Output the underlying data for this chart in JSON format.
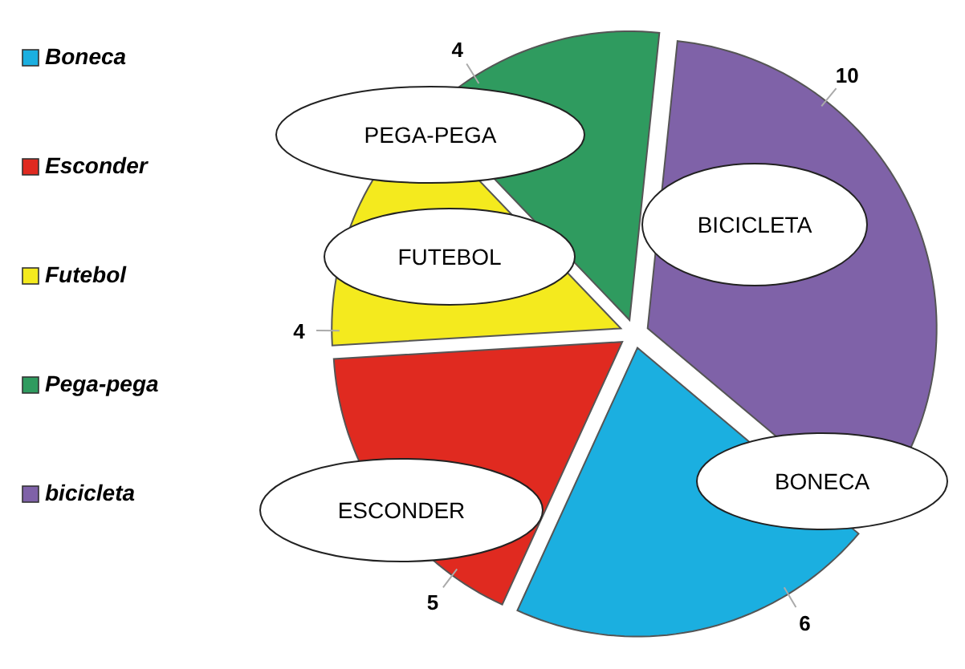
{
  "chart_data": {
    "type": "pie",
    "categories": [
      "Boneca",
      "Esconder",
      "Futebol",
      "Pega-pega",
      "bicicleta"
    ],
    "values": [
      6,
      5,
      4,
      4,
      10
    ],
    "colors": [
      "#1bafe0",
      "#e02a20",
      "#f4ea1e",
      "#2f9b5f",
      "#7f62a8"
    ],
    "data_labels": true,
    "legend": "left",
    "annotations": [
      {
        "text": "BONECA",
        "x": "Boneca"
      },
      {
        "text": "ESCONDER",
        "x": "Esconder"
      },
      {
        "text": "FUTEBOL",
        "x": "Futebol"
      },
      {
        "text": "PEGA-PEGA",
        "x": "Pega-pega"
      },
      {
        "text": "BICICLETA",
        "x": "bicicleta"
      }
    ]
  }
}
